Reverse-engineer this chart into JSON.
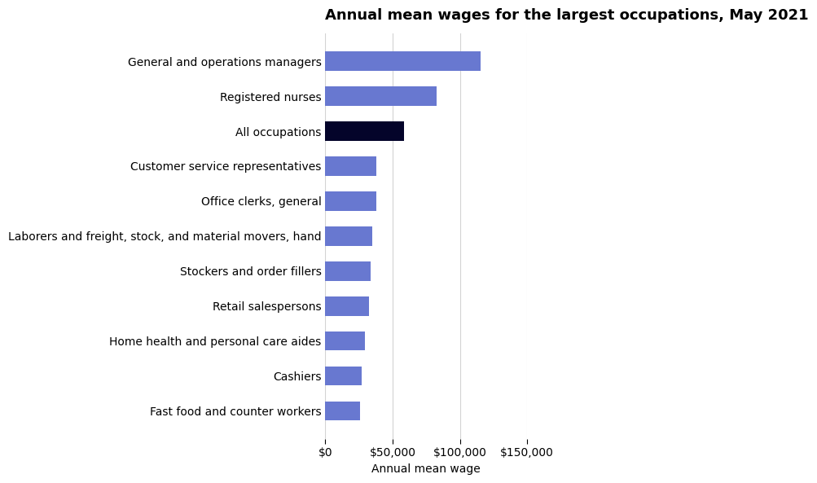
{
  "title": "Annual mean wages for the largest occupations, May 2021",
  "xlabel": "Annual mean wage",
  "categories": [
    "General and operations managers",
    "Registered nurses",
    "All occupations",
    "Customer service representatives",
    "Office clerks, general",
    "Laborers and freight, stock, and material movers, hand",
    "Stockers and order fillers",
    "Retail salespersons",
    "Home health and personal care aides",
    "Cashiers",
    "Fast food and counter workers"
  ],
  "values": [
    115250,
    82750,
    58260,
    38150,
    37650,
    34730,
    33390,
    32370,
    29430,
    27080,
    26000
  ],
  "bar_colors": [
    "#6878d0",
    "#6878d0",
    "#04042a",
    "#6878d0",
    "#6878d0",
    "#6878d0",
    "#6878d0",
    "#6878d0",
    "#6878d0",
    "#6878d0",
    "#6878d0"
  ],
  "xlim": [
    0,
    150000
  ],
  "xticks": [
    0,
    50000,
    100000,
    150000
  ],
  "xtick_labels": [
    "$0",
    "$50,000",
    "$100,000",
    "$150,000"
  ],
  "title_fontsize": 13,
  "label_fontsize": 10,
  "tick_fontsize": 10,
  "background_color": "#ffffff",
  "bar_height": 0.55
}
